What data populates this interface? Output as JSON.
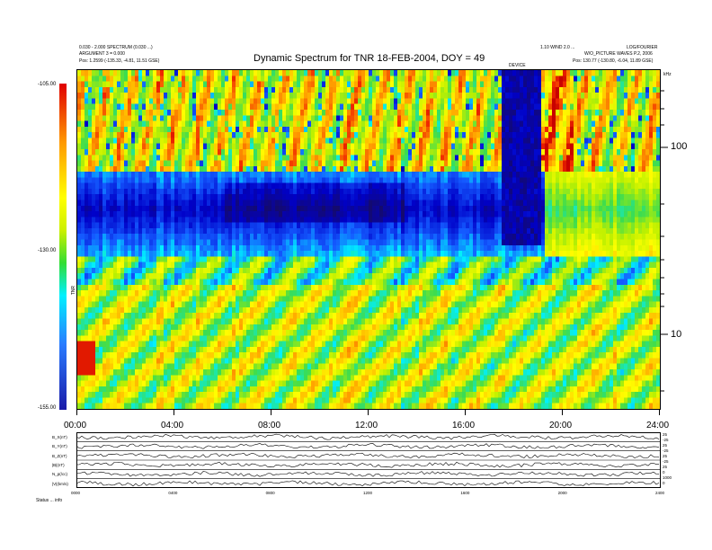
{
  "header": {
    "title": "Dynamic Spectrum for TNR 18-FEB-2004, DOY = 49",
    "left_meta": [
      "0.030 - 2.000 SPECTRUM (0.030 ...)",
      "ARGUMENT 3 = 0.000",
      "Pos: 1.2599 (-135.33, -4.81, 11.51 GSE)"
    ],
    "right_meta_top_1": "1.10 WIND 2.0 ...",
    "right_meta_top_2": "LOG/FOURIER",
    "right_meta_mid": "W/O_PICTURE WAVES P.2, 2006",
    "right_meta_pos": "Pos: 130.77 (-130.80, -6.04, 11.89 GSE)",
    "top_marker": "DEVICE",
    "right_unit": "kHz"
  },
  "colorbar": {
    "ticks": [
      "-105.00",
      "-130.00",
      "-155.00"
    ],
    "label": "TNR"
  },
  "chart_data": {
    "type": "heatmap",
    "title": "Dynamic Spectrum for TNR 18-FEB-2004, DOY = 49",
    "x_ticks": [
      "00:00",
      "04:00",
      "08:00",
      "12:00",
      "16:00",
      "20:00",
      "24:00"
    ],
    "x_range_hours": [
      0,
      24
    ],
    "y_ticks_right": [
      "100",
      "10"
    ],
    "y_scale": "log",
    "y_range_khz": [
      4,
      245
    ],
    "color_range": [
      -155,
      -105
    ],
    "colorbar_ticks": [
      -105,
      -130,
      -155
    ],
    "features": [
      {
        "band": "upper",
        "freq_khz": [
          70,
          245
        ],
        "level": "high",
        "color": "yellow-orange-red"
      },
      {
        "band": "middle",
        "freq_khz": [
          25,
          70
        ],
        "level": "low",
        "color": "blue-cyan"
      },
      {
        "band": "lower",
        "freq_khz": [
          4,
          25
        ],
        "level": "high",
        "color": "yellow-green-orange"
      },
      {
        "event": "depleted region",
        "time_hours": [
          17.5,
          19.1
        ],
        "freq_khz": [
          30,
          245
        ],
        "color": "dark blue"
      }
    ]
  },
  "bottom_panel": {
    "rows": [
      "B_X(nT)",
      "B_Y(nT)",
      "B_Z(nT)",
      "|B|(nT)",
      "N_p(/cc)",
      "|V|(km/s)"
    ],
    "right_values": [
      "25",
      "-25",
      "25",
      "-25",
      "25",
      "-25",
      "25",
      "0",
      "1000",
      "0"
    ],
    "x_ticks": [
      "0000",
      "0400",
      "0800",
      "1200",
      "1600",
      "2000",
      "2400"
    ],
    "footer": "Status  ... info"
  }
}
